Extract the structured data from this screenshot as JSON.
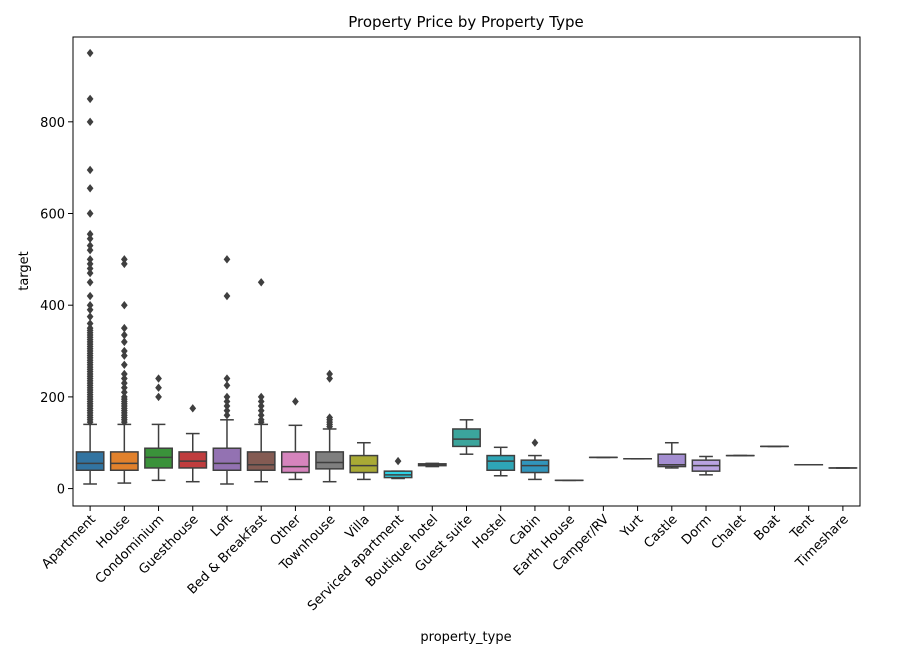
{
  "chart_data": {
    "type": "box",
    "title": "Property Price by Property Type",
    "xlabel": "property_type",
    "ylabel": "target",
    "ylim": [
      -38,
      985
    ],
    "yticks": [
      0,
      200,
      400,
      600,
      800
    ],
    "grid": false,
    "legend": "none",
    "categories": [
      {
        "name": "Apartment",
        "color": "#3274a1",
        "min": 10,
        "q1": 40,
        "median": 55,
        "q3": 80,
        "max": 140,
        "outliers": [
          145,
          150,
          155,
          160,
          165,
          170,
          175,
          180,
          185,
          190,
          195,
          200,
          205,
          210,
          215,
          220,
          225,
          230,
          235,
          240,
          245,
          250,
          255,
          260,
          265,
          270,
          275,
          280,
          285,
          290,
          295,
          300,
          305,
          310,
          315,
          320,
          325,
          330,
          335,
          340,
          345,
          350,
          360,
          375,
          390,
          400,
          420,
          450,
          470,
          480,
          490,
          500,
          520,
          530,
          545,
          555,
          600,
          655,
          695,
          800,
          850,
          950
        ]
      },
      {
        "name": "House",
        "color": "#e1812c",
        "min": 12,
        "q1": 40,
        "median": 55,
        "q3": 80,
        "max": 140,
        "outliers": [
          145,
          150,
          155,
          160,
          165,
          170,
          175,
          180,
          185,
          190,
          195,
          200,
          210,
          220,
          230,
          240,
          250,
          270,
          290,
          300,
          320,
          335,
          350,
          400,
          490,
          500
        ]
      },
      {
        "name": "Condominium",
        "color": "#3a923a",
        "min": 18,
        "q1": 45,
        "median": 68,
        "q3": 88,
        "max": 140,
        "outliers": [
          200,
          220,
          240
        ]
      },
      {
        "name": "Guesthouse",
        "color": "#c03d3e",
        "min": 15,
        "q1": 45,
        "median": 60,
        "q3": 80,
        "max": 120,
        "outliers": [
          175
        ]
      },
      {
        "name": "Loft",
        "color": "#9372b2",
        "min": 10,
        "q1": 40,
        "median": 55,
        "q3": 88,
        "max": 150,
        "outliers": [
          160,
          170,
          180,
          190,
          200,
          225,
          240,
          420,
          500
        ]
      },
      {
        "name": "Bed & Breakfast",
        "color": "#845b53",
        "min": 15,
        "q1": 40,
        "median": 52,
        "q3": 80,
        "max": 140,
        "outliers": [
          145,
          150,
          160,
          170,
          180,
          190,
          200,
          450
        ]
      },
      {
        "name": "Other",
        "color": "#d684bd",
        "min": 20,
        "q1": 35,
        "median": 48,
        "q3": 80,
        "max": 138,
        "outliers": [
          190
        ]
      },
      {
        "name": "Townhouse",
        "color": "#7f7f7f",
        "min": 15,
        "q1": 43,
        "median": 57,
        "q3": 80,
        "max": 130,
        "outliers": [
          135,
          140,
          145,
          150,
          155,
          240,
          250
        ]
      },
      {
        "name": "Villa",
        "color": "#a9aa35",
        "min": 20,
        "q1": 35,
        "median": 50,
        "q3": 72,
        "max": 100,
        "outliers": []
      },
      {
        "name": "Serviced apartment",
        "color": "#2ed0e3",
        "min": 22,
        "q1": 24,
        "median": 30,
        "q3": 38,
        "max": 38,
        "outliers": [
          60
        ]
      },
      {
        "name": "Boutique hotel",
        "color": "#3274a1",
        "min": 48,
        "q1": 50,
        "median": 52,
        "q3": 54,
        "max": 55,
        "outliers": []
      },
      {
        "name": "Guest suite",
        "color": "#3ba59c",
        "min": 75,
        "q1": 92,
        "median": 108,
        "q3": 130,
        "max": 150,
        "outliers": []
      },
      {
        "name": "Hostel",
        "color": "#2ea6b6",
        "min": 28,
        "q1": 40,
        "median": 60,
        "q3": 72,
        "max": 90,
        "outliers": []
      },
      {
        "name": "Cabin",
        "color": "#3195bc",
        "min": 20,
        "q1": 35,
        "median": 50,
        "q3": 62,
        "max": 72,
        "outliers": [
          100
        ]
      },
      {
        "name": "Earth House",
        "color": "#8c8c8c",
        "min": 18,
        "q1": 18,
        "median": 18,
        "q3": 18,
        "max": 18,
        "outliers": []
      },
      {
        "name": "Camper/RV",
        "color": "#8c8c8c",
        "min": 68,
        "q1": 68,
        "median": 68,
        "q3": 68,
        "max": 68,
        "outliers": []
      },
      {
        "name": "Yurt",
        "color": "#8c8c8c",
        "min": 65,
        "q1": 65,
        "median": 65,
        "q3": 65,
        "max": 65,
        "outliers": []
      },
      {
        "name": "Castle",
        "color": "#a48ed1",
        "min": 45,
        "q1": 48,
        "median": 52,
        "q3": 75,
        "max": 100,
        "outliers": []
      },
      {
        "name": "Dorm",
        "color": "#b9a3e0",
        "min": 30,
        "q1": 38,
        "median": 50,
        "q3": 62,
        "max": 70,
        "outliers": []
      },
      {
        "name": "Chalet",
        "color": "#8c8c8c",
        "min": 72,
        "q1": 72,
        "median": 72,
        "q3": 72,
        "max": 72,
        "outliers": []
      },
      {
        "name": "Boat",
        "color": "#8c8c8c",
        "min": 92,
        "q1": 92,
        "median": 92,
        "q3": 92,
        "max": 92,
        "outliers": []
      },
      {
        "name": "Tent",
        "color": "#8c8c8c",
        "min": 52,
        "q1": 52,
        "median": 52,
        "q3": 52,
        "max": 52,
        "outliers": []
      },
      {
        "name": "Timeshare",
        "color": "#8c8c8c",
        "min": 45,
        "q1": 45,
        "median": 45,
        "q3": 45,
        "max": 45,
        "outliers": []
      }
    ]
  }
}
